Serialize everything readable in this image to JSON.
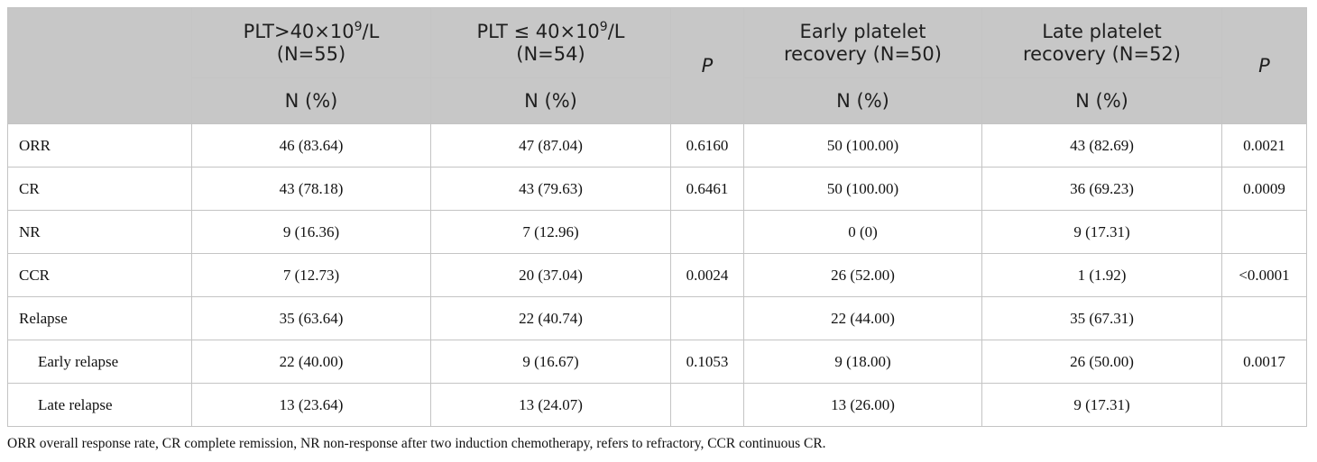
{
  "header": {
    "col_plt_high": {
      "prefix": "PLT>40×10",
      "sup": "9",
      "suffix": "/L",
      "n": "(N=55)"
    },
    "col_plt_low": {
      "prefix": "PLT ≤ 40×10",
      "sup": "9",
      "suffix": "/L",
      "n": "(N=54)"
    },
    "col_p1": "P",
    "col_early": {
      "line1": "Early platelet",
      "line2": "recovery (N=50)"
    },
    "col_late": {
      "line1": "Late platelet",
      "line2": "recovery (N=52)"
    },
    "col_p2": "P",
    "subheaders": [
      "N (%)",
      "N (%)",
      "N (%)",
      "N (%)"
    ]
  },
  "rows": [
    {
      "label": "ORR",
      "indent": false,
      "c1": "46 (83.64)",
      "c2": "47 (87.04)",
      "p1": "0.6160",
      "c3": "50 (100.00)",
      "c4": "43 (82.69)",
      "p2": "0.0021"
    },
    {
      "label": "CR",
      "indent": false,
      "c1": "43 (78.18)",
      "c2": "43 (79.63)",
      "p1": "0.6461",
      "c3": "50 (100.00)",
      "c4": "36 (69.23)",
      "p2": "0.0009"
    },
    {
      "label": "NR",
      "indent": false,
      "c1": "9 (16.36)",
      "c2": "7 (12.96)",
      "p1": "",
      "c3": "0 (0)",
      "c4": "9 (17.31)",
      "p2": ""
    },
    {
      "label": "CCR",
      "indent": false,
      "c1": "7 (12.73)",
      "c2": "20 (37.04)",
      "p1": "0.0024",
      "c3": "26 (52.00)",
      "c4": "1 (1.92)",
      "p2": "<0.0001"
    },
    {
      "label": "Relapse",
      "indent": false,
      "c1": "35 (63.64)",
      "c2": "22 (40.74)",
      "p1": "",
      "c3": "22 (44.00)",
      "c4": "35 (67.31)",
      "p2": ""
    },
    {
      "label": "Early relapse",
      "indent": true,
      "c1": "22 (40.00)",
      "c2": "9 (16.67)",
      "p1": "0.1053",
      "c3": "9 (18.00)",
      "c4": "26 (50.00)",
      "p2": "0.0017"
    },
    {
      "label": "Late relapse",
      "indent": true,
      "c1": "13 (23.64)",
      "c2": "13 (24.07)",
      "p1": "",
      "c3": "13 (26.00)",
      "c4": "9 (17.31)",
      "p2": ""
    }
  ],
  "footnote": "ORR overall response rate, CR complete remission, NR non-response after two induction chemotherapy, refers to refractory, CCR continuous CR."
}
